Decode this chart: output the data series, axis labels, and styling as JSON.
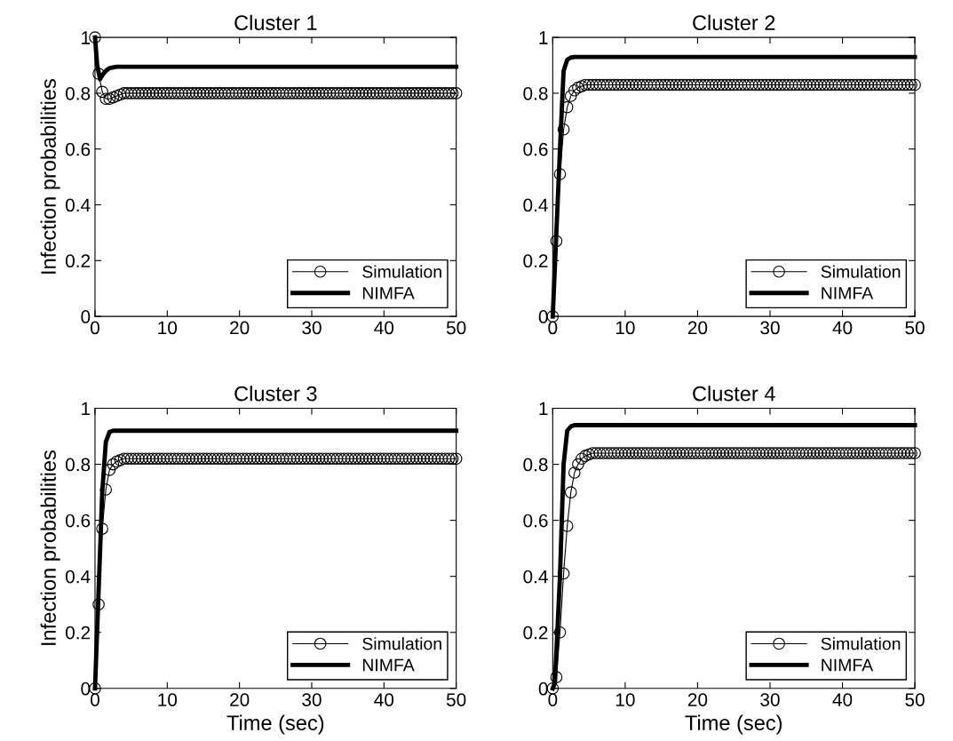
{
  "chart_data": [
    {
      "type": "line",
      "title": "Cluster 1",
      "ylabel": "Infection probabilities",
      "xlim": [
        0,
        50
      ],
      "ylim": [
        0,
        1
      ],
      "xticks": [
        0,
        10,
        20,
        30,
        40,
        50
      ],
      "yticks": [
        0,
        0.2,
        0.4,
        0.6,
        0.8,
        1
      ],
      "legend": "bottom right",
      "tick_labels": true,
      "x": [
        0,
        0.5,
        1,
        1.5,
        2,
        2.5,
        3,
        3.5,
        4,
        4.5,
        5,
        5.5,
        6,
        6.5,
        7,
        7.5,
        8,
        8.5,
        9,
        9.5,
        10,
        10.5,
        11,
        11.5,
        12,
        12.5,
        13,
        13.5,
        14,
        14.5,
        15,
        15.5,
        16,
        16.5,
        17,
        17.5,
        18,
        18.5,
        19,
        19.5,
        20,
        20.5,
        21,
        21.5,
        22,
        22.5,
        23,
        23.5,
        24,
        24.5,
        25,
        25.5,
        26,
        26.5,
        27,
        27.5,
        28,
        28.5,
        29,
        29.5,
        30,
        30.5,
        31,
        31.5,
        32,
        32.5,
        33,
        33.5,
        34,
        34.5,
        35,
        35.5,
        36,
        36.5,
        37,
        37.5,
        38,
        38.5,
        39,
        39.5,
        40,
        40.5,
        41,
        41.5,
        42,
        42.5,
        43,
        43.5,
        44,
        44.5,
        45,
        45.5,
        46,
        46.5,
        47,
        47.5,
        48,
        48.5,
        49,
        49.5,
        50
      ],
      "series": [
        {
          "name": "Simulation",
          "color": "#000000",
          "marker": "circle",
          "values": [
            1,
            0.87,
            0.805,
            0.78,
            0.78,
            0.785,
            0.79,
            0.795,
            0.8,
            0.8,
            0.8,
            0.8,
            0.8,
            0.8,
            0.8,
            0.8,
            0.8,
            0.8,
            0.8,
            0.8,
            0.8,
            0.8,
            0.8,
            0.8,
            0.8,
            0.8,
            0.8,
            0.8,
            0.8,
            0.8,
            0.8,
            0.8,
            0.8,
            0.8,
            0.8,
            0.8,
            0.8,
            0.8,
            0.8,
            0.8,
            0.8,
            0.8,
            0.8,
            0.8,
            0.8,
            0.8,
            0.8,
            0.8,
            0.8,
            0.8,
            0.8,
            0.8,
            0.8,
            0.8,
            0.8,
            0.8,
            0.8,
            0.8,
            0.8,
            0.8,
            0.8,
            0.8,
            0.8,
            0.8,
            0.8,
            0.8,
            0.8,
            0.8,
            0.8,
            0.8,
            0.8,
            0.8,
            0.8,
            0.8,
            0.8,
            0.8,
            0.8,
            0.8,
            0.8,
            0.8,
            0.8,
            0.8,
            0.8,
            0.8,
            0.8,
            0.8,
            0.8,
            0.8,
            0.8,
            0.8,
            0.8,
            0.8,
            0.8,
            0.8,
            0.8,
            0.8,
            0.8,
            0.8,
            0.8,
            0.8,
            0.8
          ]
        },
        {
          "name": "NIMFA",
          "color": "#000000",
          "marker": "none",
          "x": [
            0,
            0.3,
            0.7,
            1.0,
            1.5,
            2,
            3,
            50
          ],
          "values": [
            1,
            0.9,
            0.85,
            0.865,
            0.88,
            0.89,
            0.895,
            0.895
          ]
        }
      ]
    },
    {
      "type": "line",
      "title": "Cluster 2",
      "xlim": [
        0,
        50
      ],
      "ylim": [
        0,
        1
      ],
      "xticks": [
        0,
        10,
        20,
        30,
        40,
        50
      ],
      "yticks": [
        0,
        0.2,
        0.4,
        0.6,
        0.8,
        1
      ],
      "legend": "bottom right",
      "tick_labels": true,
      "x": [
        0,
        0.5,
        1,
        1.5,
        2,
        2.5,
        3,
        3.5,
        4,
        4.5,
        5,
        5.5,
        6,
        6.5,
        7,
        7.5,
        8,
        8.5,
        9,
        9.5,
        10,
        10.5,
        11,
        11.5,
        12,
        12.5,
        13,
        13.5,
        14,
        14.5,
        15,
        15.5,
        16,
        16.5,
        17,
        17.5,
        18,
        18.5,
        19,
        19.5,
        20,
        20.5,
        21,
        21.5,
        22,
        22.5,
        23,
        23.5,
        24,
        24.5,
        25,
        25.5,
        26,
        26.5,
        27,
        27.5,
        28,
        28.5,
        29,
        29.5,
        30,
        30.5,
        31,
        31.5,
        32,
        32.5,
        33,
        33.5,
        34,
        34.5,
        35,
        35.5,
        36,
        36.5,
        37,
        37.5,
        38,
        38.5,
        39,
        39.5,
        40,
        40.5,
        41,
        41.5,
        42,
        42.5,
        43,
        43.5,
        44,
        44.5,
        45,
        45.5,
        46,
        46.5,
        47,
        47.5,
        48,
        48.5,
        49,
        49.5,
        50
      ],
      "series": [
        {
          "name": "Simulation",
          "color": "#000000",
          "marker": "circle",
          "values": [
            0,
            0.27,
            0.51,
            0.67,
            0.75,
            0.79,
            0.81,
            0.82,
            0.825,
            0.83,
            0.83,
            0.83,
            0.83,
            0.83,
            0.83,
            0.83,
            0.83,
            0.83,
            0.83,
            0.83,
            0.83,
            0.83,
            0.83,
            0.83,
            0.83,
            0.83,
            0.83,
            0.83,
            0.83,
            0.83,
            0.83,
            0.83,
            0.83,
            0.83,
            0.83,
            0.83,
            0.83,
            0.83,
            0.83,
            0.83,
            0.83,
            0.83,
            0.83,
            0.83,
            0.83,
            0.83,
            0.83,
            0.83,
            0.83,
            0.83,
            0.83,
            0.83,
            0.83,
            0.83,
            0.83,
            0.83,
            0.83,
            0.83,
            0.83,
            0.83,
            0.83,
            0.83,
            0.83,
            0.83,
            0.83,
            0.83,
            0.83,
            0.83,
            0.83,
            0.83,
            0.83,
            0.83,
            0.83,
            0.83,
            0.83,
            0.83,
            0.83,
            0.83,
            0.83,
            0.83,
            0.83,
            0.83,
            0.83,
            0.83,
            0.83,
            0.83,
            0.83,
            0.83,
            0.83,
            0.83,
            0.83,
            0.83,
            0.83,
            0.83,
            0.83,
            0.83,
            0.83,
            0.83,
            0.83,
            0.83,
            0.83
          ]
        },
        {
          "name": "NIMFA",
          "color": "#000000",
          "marker": "none",
          "x": [
            0,
            0.5,
            1,
            1.5,
            2,
            2.5,
            3,
            50
          ],
          "values": [
            0,
            0.3,
            0.6,
            0.88,
            0.92,
            0.928,
            0.93,
            0.93
          ]
        }
      ]
    },
    {
      "type": "line",
      "title": "Cluster 3",
      "xlabel": "Time (sec)",
      "ylabel": "Infection probabilities",
      "xlim": [
        0,
        50
      ],
      "ylim": [
        0,
        1
      ],
      "xticks": [
        0,
        10,
        20,
        30,
        40,
        50
      ],
      "yticks": [
        0,
        0.2,
        0.4,
        0.6,
        0.8,
        1
      ],
      "legend": "bottom right",
      "tick_labels": true,
      "x": [
        0,
        0.5,
        1,
        1.5,
        2,
        2.5,
        3,
        3.5,
        4,
        4.5,
        5,
        5.5,
        6,
        6.5,
        7,
        7.5,
        8,
        8.5,
        9,
        9.5,
        10,
        10.5,
        11,
        11.5,
        12,
        12.5,
        13,
        13.5,
        14,
        14.5,
        15,
        15.5,
        16,
        16.5,
        17,
        17.5,
        18,
        18.5,
        19,
        19.5,
        20,
        20.5,
        21,
        21.5,
        22,
        22.5,
        23,
        23.5,
        24,
        24.5,
        25,
        25.5,
        26,
        26.5,
        27,
        27.5,
        28,
        28.5,
        29,
        29.5,
        30,
        30.5,
        31,
        31.5,
        32,
        32.5,
        33,
        33.5,
        34,
        34.5,
        35,
        35.5,
        36,
        36.5,
        37,
        37.5,
        38,
        38.5,
        39,
        39.5,
        40,
        40.5,
        41,
        41.5,
        42,
        42.5,
        43,
        43.5,
        44,
        44.5,
        45,
        45.5,
        46,
        46.5,
        47,
        47.5,
        48,
        48.5,
        49,
        49.5,
        50
      ],
      "series": [
        {
          "name": "Simulation",
          "color": "#000000",
          "marker": "circle",
          "values": [
            0,
            0.3,
            0.57,
            0.71,
            0.78,
            0.8,
            0.81,
            0.815,
            0.82,
            0.82,
            0.82,
            0.82,
            0.82,
            0.82,
            0.82,
            0.82,
            0.82,
            0.82,
            0.82,
            0.82,
            0.82,
            0.82,
            0.82,
            0.82,
            0.82,
            0.82,
            0.82,
            0.82,
            0.82,
            0.82,
            0.82,
            0.82,
            0.82,
            0.82,
            0.82,
            0.82,
            0.82,
            0.82,
            0.82,
            0.82,
            0.82,
            0.82,
            0.82,
            0.82,
            0.82,
            0.82,
            0.82,
            0.82,
            0.82,
            0.82,
            0.82,
            0.82,
            0.82,
            0.82,
            0.82,
            0.82,
            0.82,
            0.82,
            0.82,
            0.82,
            0.82,
            0.82,
            0.82,
            0.82,
            0.82,
            0.82,
            0.82,
            0.82,
            0.82,
            0.82,
            0.82,
            0.82,
            0.82,
            0.82,
            0.82,
            0.82,
            0.82,
            0.82,
            0.82,
            0.82,
            0.82,
            0.82,
            0.82,
            0.82,
            0.82,
            0.82,
            0.82,
            0.82,
            0.82,
            0.82,
            0.82,
            0.82,
            0.82,
            0.82,
            0.82,
            0.82,
            0.82,
            0.82,
            0.82,
            0.82,
            0.82
          ]
        },
        {
          "name": "NIMFA",
          "color": "#000000",
          "marker": "none",
          "x": [
            0,
            0.5,
            1,
            1.5,
            2,
            2.5,
            50
          ],
          "values": [
            0,
            0.35,
            0.7,
            0.88,
            0.915,
            0.92,
            0.92
          ]
        }
      ]
    },
    {
      "type": "line",
      "title": "Cluster 4",
      "xlabel": "Time (sec)",
      "xlim": [
        0,
        50
      ],
      "ylim": [
        0,
        1
      ],
      "xticks": [
        0,
        10,
        20,
        30,
        40,
        50
      ],
      "yticks": [
        0,
        0.2,
        0.4,
        0.6,
        0.8,
        1
      ],
      "legend": "bottom right",
      "tick_labels": true,
      "x": [
        0,
        0.5,
        1,
        1.5,
        2,
        2.5,
        3,
        3.5,
        4,
        4.5,
        5,
        5.5,
        6,
        6.5,
        7,
        7.5,
        8,
        8.5,
        9,
        9.5,
        10,
        10.5,
        11,
        11.5,
        12,
        12.5,
        13,
        13.5,
        14,
        14.5,
        15,
        15.5,
        16,
        16.5,
        17,
        17.5,
        18,
        18.5,
        19,
        19.5,
        20,
        20.5,
        21,
        21.5,
        22,
        22.5,
        23,
        23.5,
        24,
        24.5,
        25,
        25.5,
        26,
        26.5,
        27,
        27.5,
        28,
        28.5,
        29,
        29.5,
        30,
        30.5,
        31,
        31.5,
        32,
        32.5,
        33,
        33.5,
        34,
        34.5,
        35,
        35.5,
        36,
        36.5,
        37,
        37.5,
        38,
        38.5,
        39,
        39.5,
        40,
        40.5,
        41,
        41.5,
        42,
        42.5,
        43,
        43.5,
        44,
        44.5,
        45,
        45.5,
        46,
        46.5,
        47,
        47.5,
        48,
        48.5,
        49,
        49.5,
        50
      ],
      "series": [
        {
          "name": "Simulation",
          "color": "#000000",
          "marker": "circle",
          "values": [
            0,
            0.04,
            0.2,
            0.41,
            0.58,
            0.7,
            0.77,
            0.8,
            0.82,
            0.83,
            0.835,
            0.84,
            0.84,
            0.84,
            0.84,
            0.84,
            0.84,
            0.84,
            0.84,
            0.84,
            0.84,
            0.84,
            0.84,
            0.84,
            0.84,
            0.84,
            0.84,
            0.84,
            0.84,
            0.84,
            0.84,
            0.84,
            0.84,
            0.84,
            0.84,
            0.84,
            0.84,
            0.84,
            0.84,
            0.84,
            0.84,
            0.84,
            0.84,
            0.84,
            0.84,
            0.84,
            0.84,
            0.84,
            0.84,
            0.84,
            0.84,
            0.84,
            0.84,
            0.84,
            0.84,
            0.84,
            0.84,
            0.84,
            0.84,
            0.84,
            0.84,
            0.84,
            0.84,
            0.84,
            0.84,
            0.84,
            0.84,
            0.84,
            0.84,
            0.84,
            0.84,
            0.84,
            0.84,
            0.84,
            0.84,
            0.84,
            0.84,
            0.84,
            0.84,
            0.84,
            0.84,
            0.84,
            0.84,
            0.84,
            0.84,
            0.84,
            0.84,
            0.84,
            0.84,
            0.84,
            0.84,
            0.84,
            0.84,
            0.84,
            0.84,
            0.84,
            0.84,
            0.84,
            0.84,
            0.84,
            0.84
          ]
        },
        {
          "name": "NIMFA",
          "color": "#000000",
          "marker": "none",
          "x": [
            0,
            0.3,
            1,
            1.5,
            2,
            2.5,
            3,
            50
          ],
          "values": [
            0,
            0.02,
            0.4,
            0.8,
            0.92,
            0.935,
            0.94,
            0.94
          ]
        }
      ]
    }
  ]
}
